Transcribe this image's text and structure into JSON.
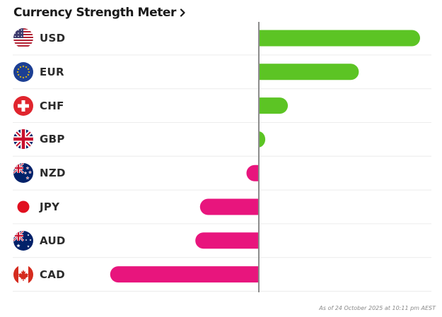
{
  "header": {
    "title": "Currency Strength Meter"
  },
  "footnote": "As of 24 October 2025 at 10:11 pm AEST",
  "colors": {
    "positive": "#5cc424",
    "negative": "#e8157d",
    "axis": "#8c8c8c",
    "divider": "#ececec"
  },
  "chart_data": {
    "type": "bar",
    "orientation": "horizontal",
    "categories": [
      "USD",
      "EUR",
      "CHF",
      "GBP",
      "NZD",
      "JPY",
      "AUD",
      "CAD"
    ],
    "flags": [
      "us-flag-icon",
      "eu-flag-icon",
      "swiss-flag-icon",
      "uk-flag-icon",
      "nz-flag-icon",
      "japan-flag-icon",
      "australia-flag-icon",
      "canada-flag-icon"
    ],
    "values": [
      100,
      62,
      18,
      4,
      -8,
      -38,
      -41,
      -96
    ],
    "xlim": [
      -100,
      100
    ],
    "tick_labels": "none",
    "grid": false,
    "legend": "none"
  }
}
